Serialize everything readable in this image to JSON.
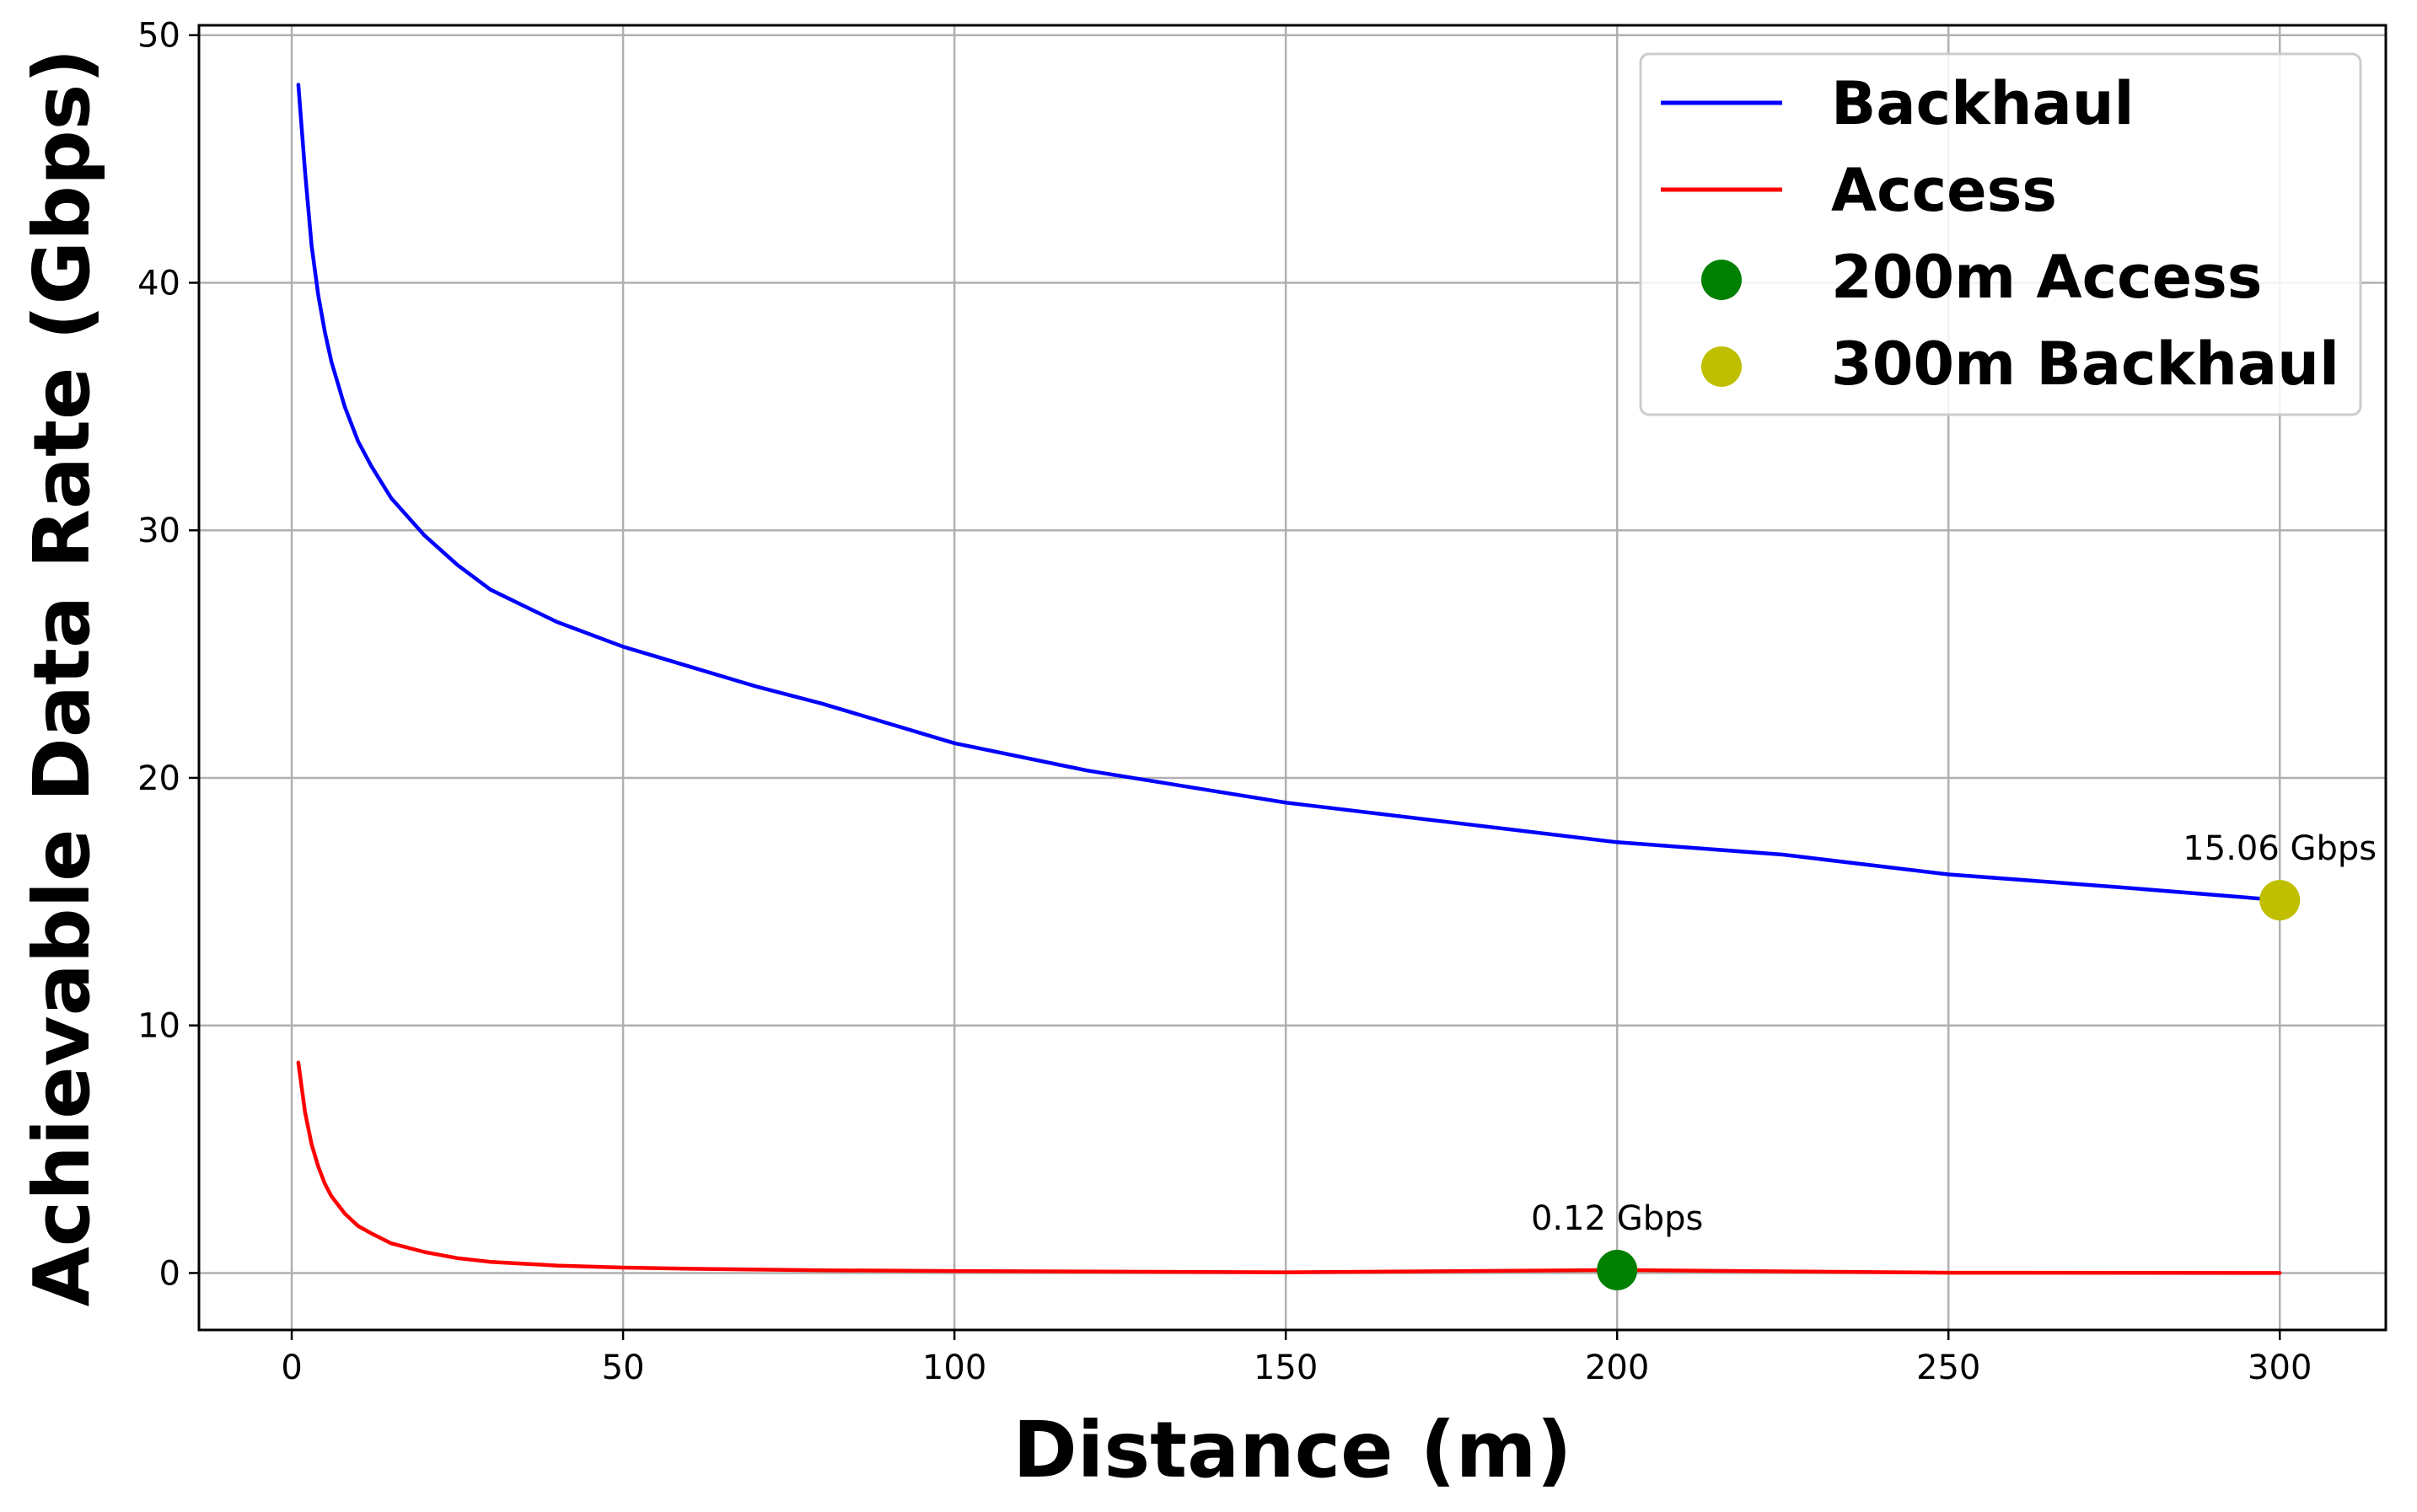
{
  "chart_data": {
    "type": "line",
    "xlabel": "Distance (m)",
    "ylabel": "Achievable Data Rate (Gbps)",
    "xlim": [
      -14,
      316
    ],
    "ylim": [
      -2.3,
      50.4
    ],
    "grid": true,
    "legend_placement": "top-right",
    "xticks": [
      0,
      50,
      100,
      150,
      200,
      250,
      300
    ],
    "yticks": [
      0,
      10,
      20,
      30,
      40,
      50
    ],
    "series": [
      {
        "name": "Backhaul",
        "color": "#0000ff",
        "x": [
          1,
          2,
          3,
          4,
          5,
          6,
          8,
          10,
          12,
          15,
          20,
          25,
          30,
          40,
          50,
          60,
          70,
          80,
          100,
          120,
          150,
          175,
          200,
          225,
          250,
          275,
          300
        ],
        "y": [
          48.0,
          44.5,
          41.5,
          39.5,
          38.0,
          36.8,
          35.0,
          33.6,
          32.6,
          31.3,
          29.8,
          28.6,
          27.6,
          26.3,
          25.3,
          24.5,
          23.7,
          23.0,
          21.4,
          20.3,
          19.0,
          18.2,
          17.4,
          16.9,
          16.1,
          15.6,
          15.06
        ]
      },
      {
        "name": "Access",
        "color": "#ff0000",
        "x": [
          1,
          2,
          3,
          4,
          5,
          6,
          8,
          10,
          12,
          15,
          20,
          25,
          30,
          40,
          50,
          60,
          80,
          100,
          150,
          200,
          250,
          300
        ],
        "y": [
          8.5,
          6.5,
          5.2,
          4.3,
          3.6,
          3.1,
          2.4,
          1.9,
          1.6,
          1.2,
          0.85,
          0.6,
          0.45,
          0.3,
          0.22,
          0.17,
          0.11,
          0.08,
          0.03,
          0.12,
          0.01,
          0.0
        ]
      }
    ],
    "points": [
      {
        "name": "200m Access",
        "color": "#008000",
        "x": 200,
        "y": 0.12,
        "label": "0.12 Gbps"
      },
      {
        "name": "300m Backhaul",
        "color": "#bfbf00",
        "x": 300,
        "y": 15.06,
        "label": "15.06 Gbps"
      }
    ]
  }
}
